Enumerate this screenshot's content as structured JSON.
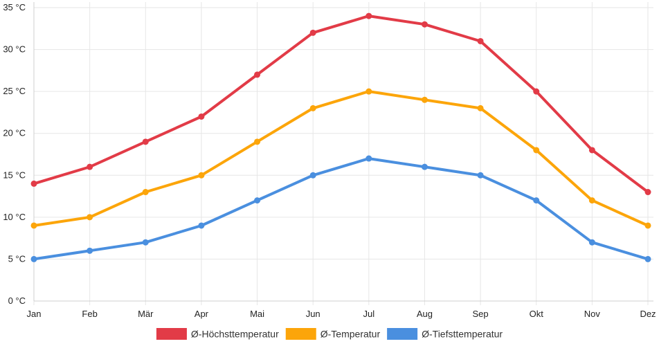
{
  "chart_data": {
    "type": "line",
    "title": "",
    "xlabel": "",
    "ylabel": "",
    "categories": [
      "Jan",
      "Feb",
      "Mär",
      "Apr",
      "Mai",
      "Jun",
      "Jul",
      "Aug",
      "Sep",
      "Okt",
      "Nov",
      "Dez"
    ],
    "ylim": [
      0,
      35
    ],
    "yticks": [
      0,
      5,
      10,
      15,
      20,
      25,
      30,
      35
    ],
    "y_unit": " °C",
    "grid": true,
    "legend_position": "bottom",
    "series": [
      {
        "name": "Ø-Höchsttemperatur",
        "color": "#e23b47",
        "values": [
          14,
          16,
          19,
          22,
          27,
          32,
          34,
          33,
          31,
          25,
          18,
          13
        ]
      },
      {
        "name": "Ø-Temperatur",
        "color": "#fca50a",
        "values": [
          9,
          10,
          13,
          15,
          19,
          23,
          25,
          24,
          23,
          18,
          12,
          9
        ]
      },
      {
        "name": "Ø-Tiefsttemperatur",
        "color": "#4a8fdf",
        "values": [
          5,
          6,
          7,
          9,
          12,
          15,
          17,
          16,
          15,
          12,
          7,
          5
        ]
      }
    ]
  }
}
